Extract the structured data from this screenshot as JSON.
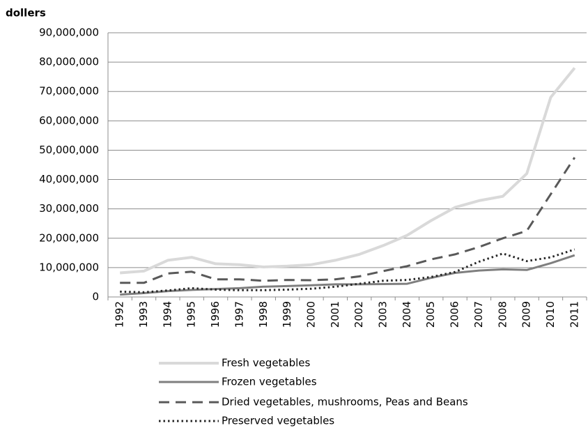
{
  "chart_data": {
    "type": "line",
    "title": "dollers",
    "categories": [
      "1992",
      "1993",
      "1994",
      "1995",
      "1996",
      "1997",
      "1998",
      "1999",
      "2000",
      "2001",
      "2002",
      "2003",
      "2004",
      "2005",
      "2006",
      "2007",
      "2008",
      "2009",
      "2010",
      "2011"
    ],
    "series": [
      {
        "name": "Fresh vegetables",
        "color": "#d9d9d9",
        "style": "solid",
        "width": 4,
        "values": [
          8200000,
          8800000,
          12500000,
          13500000,
          11300000,
          11000000,
          10200000,
          10500000,
          11000000,
          12500000,
          14500000,
          17500000,
          21000000,
          26000000,
          30500000,
          32800000,
          34300000,
          42000000,
          68000000,
          78000000
        ]
      },
      {
        "name": "Frozen vegetables",
        "color": "#7f7f7f",
        "style": "solid",
        "width": 3,
        "values": [
          800000,
          1300000,
          2000000,
          2400000,
          2700000,
          3000000,
          3500000,
          3700000,
          4000000,
          4300000,
          4300000,
          4400000,
          4500000,
          6500000,
          8200000,
          9000000,
          9400000,
          9200000,
          11500000,
          14200000
        ]
      },
      {
        "name": "Dried vegetables, mushrooms, Peas and Beans",
        "color": "#595959",
        "style": "dashed",
        "width": 3,
        "values": [
          4800000,
          4800000,
          8000000,
          8600000,
          6000000,
          6000000,
          5500000,
          5800000,
          5700000,
          6000000,
          7000000,
          8800000,
          10500000,
          12800000,
          14500000,
          17000000,
          20000000,
          22500000,
          35000000,
          47500000
        ]
      },
      {
        "name": "Preserved vegetables",
        "color": "#262626",
        "style": "dotted",
        "width": 3,
        "values": [
          1800000,
          1600000,
          2200000,
          3000000,
          2500000,
          2300000,
          2300000,
          2500000,
          2800000,
          3500000,
          4500000,
          5500000,
          5800000,
          6800000,
          8500000,
          12000000,
          14800000,
          12200000,
          13500000,
          16200000
        ]
      }
    ],
    "ylim": [
      0,
      90000000
    ],
    "yticks": [
      0,
      {
        "value": 10000000,
        "label": "10,000,000"
      },
      {
        "value": 20000000,
        "label": "20,000,000"
      },
      {
        "value": 30000000,
        "label": "30,000,000"
      },
      {
        "value": 40000000,
        "label": "40,000,000"
      },
      {
        "value": 50000000,
        "label": "50,000,000"
      },
      {
        "value": 60000000,
        "label": "60,000,000"
      },
      {
        "value": 70000000,
        "label": "70,000,000"
      },
      {
        "value": 80000000,
        "label": "80,000,000"
      },
      {
        "value": 90000000,
        "label": "90,000,000"
      }
    ],
    "grid": true,
    "legend": "bottom"
  }
}
